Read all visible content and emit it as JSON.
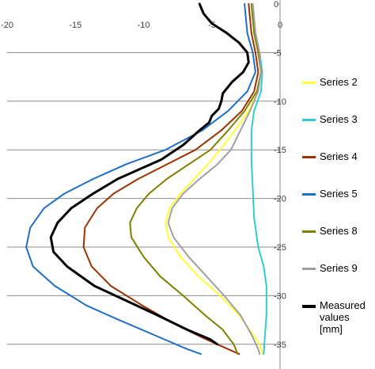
{
  "chart_data": {
    "type": "line",
    "title": "",
    "xlabel": "",
    "ylabel": "",
    "xlim": [
      -20,
      0
    ],
    "ylim": [
      0,
      36
    ],
    "y_reversed": true,
    "x_ticks": [
      "-20",
      "-15",
      "-10",
      "-5",
      "0"
    ],
    "y_ticks": [
      "0",
      "-5",
      "-10",
      "-15",
      "-20",
      "-25",
      "-30",
      "-35"
    ],
    "y_tick_values": [
      0,
      5,
      10,
      15,
      20,
      25,
      30,
      35
    ],
    "grid": "horizontal",
    "legend_position": "right",
    "series": [
      {
        "name": "Series 2",
        "color": "#ffff33",
        "points": [
          [
            -2,
            0
          ],
          [
            -1.8,
            3
          ],
          [
            -1.5,
            5
          ],
          [
            -1.4,
            7
          ],
          [
            -1.6,
            9
          ],
          [
            -2.3,
            11
          ],
          [
            -3.3,
            13
          ],
          [
            -4.4,
            15
          ],
          [
            -5.3,
            16.5
          ],
          [
            -6.3,
            18
          ],
          [
            -7.3,
            19.5
          ],
          [
            -8.1,
            21
          ],
          [
            -8.4,
            22.5
          ],
          [
            -8.2,
            24
          ],
          [
            -7.3,
            26
          ],
          [
            -6,
            28
          ],
          [
            -4.4,
            30
          ],
          [
            -3,
            32
          ],
          [
            -2,
            34
          ],
          [
            -1.5,
            35
          ],
          [
            -1.3,
            36
          ]
        ]
      },
      {
        "name": "Series 3",
        "color": "#33cccc",
        "points": [
          [
            -2,
            0
          ],
          [
            -1.8,
            3
          ],
          [
            -1.5,
            5
          ],
          [
            -1.3,
            7
          ],
          [
            -1.4,
            9
          ],
          [
            -1.9,
            11
          ],
          [
            -2.1,
            13
          ],
          [
            -2.1,
            16
          ],
          [
            -2.0,
            19
          ],
          [
            -1.9,
            22
          ],
          [
            -1.6,
            25
          ],
          [
            -1.2,
            27
          ],
          [
            -1.0,
            29
          ],
          [
            -1.0,
            32
          ],
          [
            -1.1,
            34
          ],
          [
            -1.2,
            36
          ]
        ]
      },
      {
        "name": "Series 4",
        "color": "#993300",
        "points": [
          [
            -2.3,
            0
          ],
          [
            -2.1,
            3
          ],
          [
            -1.8,
            5
          ],
          [
            -1.6,
            7
          ],
          [
            -1.9,
            9
          ],
          [
            -2.8,
            11
          ],
          [
            -4.3,
            13
          ],
          [
            -6.2,
            15
          ],
          [
            -8.3,
            16.5
          ],
          [
            -10.4,
            18
          ],
          [
            -12.2,
            19.5
          ],
          [
            -13.4,
            21
          ],
          [
            -14.3,
            23
          ],
          [
            -14.4,
            25
          ],
          [
            -13.8,
            27
          ],
          [
            -12.4,
            29
          ],
          [
            -10.1,
            31
          ],
          [
            -7.6,
            33
          ],
          [
            -5.4,
            34.5
          ],
          [
            -3.8,
            35.5
          ],
          [
            -3,
            36
          ]
        ]
      },
      {
        "name": "Series 5",
        "color": "#1f6fc6",
        "points": [
          [
            -2.6,
            0
          ],
          [
            -2.4,
            3
          ],
          [
            -2.0,
            5
          ],
          [
            -1.8,
            7
          ],
          [
            -2.4,
            9
          ],
          [
            -3.8,
            11
          ],
          [
            -5.7,
            13
          ],
          [
            -8.4,
            15
          ],
          [
            -11.3,
            16.5
          ],
          [
            -13.7,
            18
          ],
          [
            -15.8,
            19.5
          ],
          [
            -17.3,
            21
          ],
          [
            -18.3,
            23
          ],
          [
            -18.6,
            25
          ],
          [
            -18.1,
            27
          ],
          [
            -16.5,
            29
          ],
          [
            -14.2,
            31
          ],
          [
            -11.8,
            32.5
          ],
          [
            -9.3,
            34
          ],
          [
            -6.8,
            35.5
          ],
          [
            -5.8,
            36
          ]
        ]
      },
      {
        "name": "Series 8",
        "color": "#808000",
        "points": [
          [
            -2.1,
            0
          ],
          [
            -1.9,
            3
          ],
          [
            -1.6,
            5
          ],
          [
            -1.4,
            7
          ],
          [
            -1.7,
            9
          ],
          [
            -2.6,
            11
          ],
          [
            -3.8,
            13
          ],
          [
            -5.1,
            15
          ],
          [
            -6.7,
            16.5
          ],
          [
            -8.3,
            18
          ],
          [
            -9.6,
            19.5
          ],
          [
            -10.5,
            21
          ],
          [
            -11,
            22.5
          ],
          [
            -10.9,
            24
          ],
          [
            -10,
            26
          ],
          [
            -8.8,
            28
          ],
          [
            -7.1,
            30
          ],
          [
            -5.5,
            32
          ],
          [
            -4.2,
            33.5
          ],
          [
            -3.4,
            35
          ],
          [
            -3.1,
            36
          ]
        ]
      },
      {
        "name": "Series 9",
        "color": "#a0a0a0",
        "points": [
          [
            -2,
            0
          ],
          [
            -1.8,
            3
          ],
          [
            -1.5,
            5
          ],
          [
            -1.4,
            7
          ],
          [
            -1.6,
            9
          ],
          [
            -2.2,
            11
          ],
          [
            -2.9,
            13
          ],
          [
            -3.6,
            15
          ],
          [
            -4.6,
            16.5
          ],
          [
            -5.9,
            18
          ],
          [
            -7.1,
            19.5
          ],
          [
            -7.9,
            21
          ],
          [
            -8.2,
            22.5
          ],
          [
            -7.8,
            24
          ],
          [
            -6.7,
            26
          ],
          [
            -5.4,
            28
          ],
          [
            -4.1,
            30
          ],
          [
            -2.9,
            32
          ],
          [
            -2.1,
            34
          ],
          [
            -1.6,
            35.5
          ],
          [
            -1.5,
            36
          ]
        ]
      },
      {
        "name": "Measured\nvalues [mm]",
        "color": "#000000",
        "points": [
          [
            -5.9,
            0
          ],
          [
            -5.6,
            1
          ],
          [
            -5.0,
            2
          ],
          [
            -3.9,
            3
          ],
          [
            -3.0,
            4
          ],
          [
            -2.4,
            5
          ],
          [
            -2.3,
            6
          ],
          [
            -2.7,
            7
          ],
          [
            -3.5,
            8
          ],
          [
            -4.2,
            9.2
          ],
          [
            -4.3,
            10
          ],
          [
            -4.5,
            10.8
          ],
          [
            -5,
            11.5
          ],
          [
            -5.2,
            12.2
          ],
          [
            -5.9,
            13
          ],
          [
            -7.1,
            14.5
          ],
          [
            -8.7,
            16
          ],
          [
            -10.3,
            17
          ],
          [
            -11.9,
            18
          ],
          [
            -13.7,
            19.5
          ],
          [
            -15.3,
            21
          ],
          [
            -16.3,
            22.5
          ],
          [
            -16.8,
            24
          ],
          [
            -16.6,
            25.5
          ],
          [
            -15.6,
            27
          ],
          [
            -13.6,
            29
          ],
          [
            -11.3,
            30.5
          ],
          [
            -9,
            32
          ],
          [
            -6.8,
            33.5
          ],
          [
            -5.1,
            34.5
          ],
          [
            -4.6,
            35
          ]
        ]
      }
    ]
  }
}
